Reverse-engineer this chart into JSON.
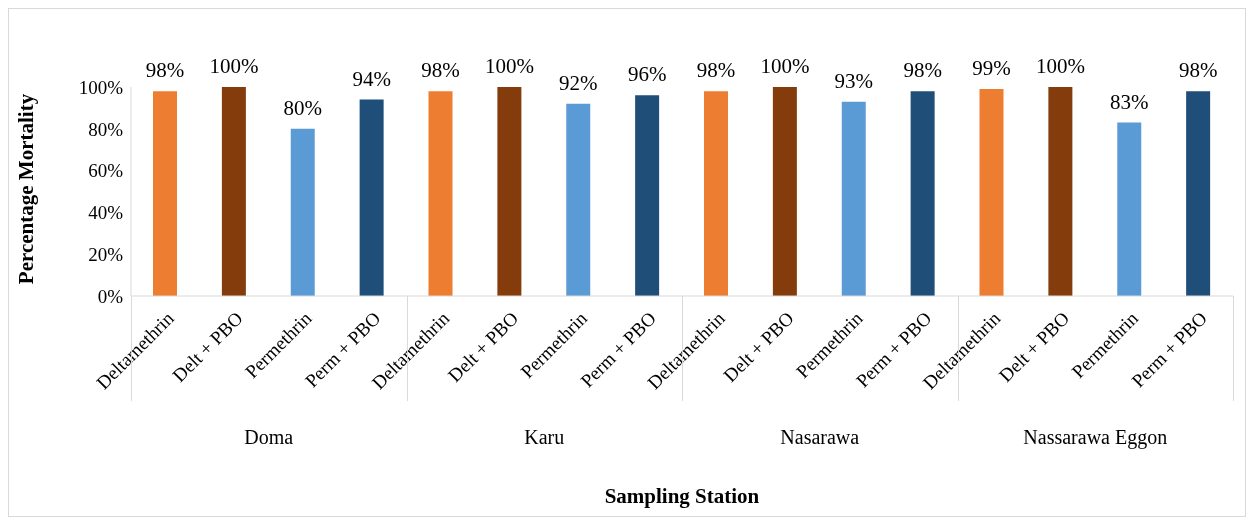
{
  "chart_data": {
    "type": "bar",
    "xlabel": "Sampling Station",
    "ylabel": "Percentage Mortality",
    "categories": [
      "Deltamethrin",
      "Delt + PBO",
      "Permethrin",
      "Perm + PBO",
      "Deltamethrin",
      "Delt + PBO",
      "Permethrin",
      "Perm + PBO",
      "Deltamethrin",
      "Delt + PBO",
      "Permethrin",
      "Perm + PBO",
      "Deltamethrin",
      "Delt + PBO",
      "Permethrin",
      "Perm + PBO"
    ],
    "values": [
      98,
      100,
      80,
      94,
      98,
      100,
      92,
      96,
      98,
      100,
      93,
      98,
      99,
      100,
      83,
      98
    ],
    "value_labels": [
      "98%",
      "100%",
      "80%",
      "94%",
      "98%",
      "100%",
      "92%",
      "96%",
      "98%",
      "100%",
      "93%",
      "98%",
      "99%",
      "100%",
      "83%",
      "98%"
    ],
    "colors": [
      "#ed7d31",
      "#843c0c",
      "#5b9bd5",
      "#1f4e79",
      "#ed7d31",
      "#843c0c",
      "#5b9bd5",
      "#1f4e79",
      "#ed7d31",
      "#843c0c",
      "#5b9bd5",
      "#1f4e79",
      "#ed7d31",
      "#843c0c",
      "#5b9bd5",
      "#1f4e79"
    ],
    "annotations": [
      "Doma",
      "Karu",
      "Nasarawa",
      "Nassarawa Eggon"
    ],
    "ylim": [
      0,
      100
    ],
    "yticks": [
      {
        "value": 0,
        "label": "0%"
      },
      {
        "value": 20,
        "label": "20%"
      },
      {
        "value": 40,
        "label": "40%"
      },
      {
        "value": 60,
        "label": "60%"
      },
      {
        "value": 80,
        "label": "80%"
      },
      {
        "value": 100,
        "label": "100%"
      }
    ]
  }
}
